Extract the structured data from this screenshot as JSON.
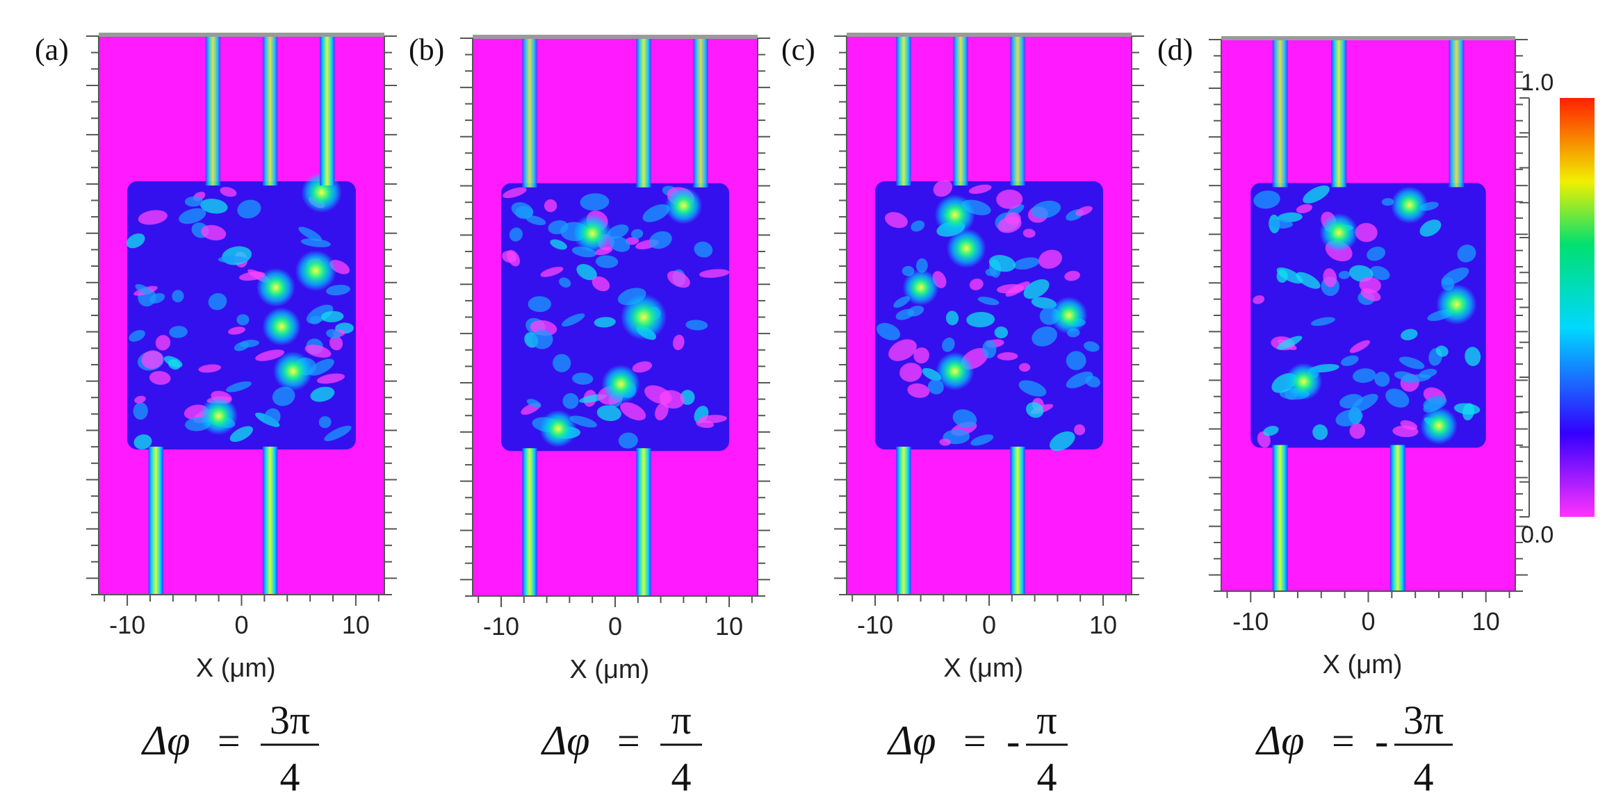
{
  "chart_data": [
    {
      "type": "heatmap",
      "panel_label": "(a)",
      "xlabel": "X (μm)",
      "x_ticks": [
        -10,
        0,
        10
      ],
      "xlim": [
        -12.5,
        12.5
      ],
      "delta_phi_numerator": "3π",
      "delta_phi_sign": "",
      "delta_phi_denominator": "4",
      "input_waveguides_x": [
        -7.5,
        2.5
      ],
      "output_waveguides_x": [
        -2.5,
        2.5,
        7.5
      ],
      "output_intensity": [
        0.55,
        0.55,
        0.75
      ],
      "bright_spots": [
        [
          7.0,
          0.28,
          0.7
        ],
        [
          6.5,
          0.42,
          0.72
        ],
        [
          4.5,
          0.6,
          0.65
        ],
        [
          3.0,
          0.45,
          0.62
        ],
        [
          -2.0,
          0.68,
          0.6
        ],
        [
          3.5,
          0.52,
          0.6
        ]
      ]
    },
    {
      "type": "heatmap",
      "panel_label": "(b)",
      "xlabel": "X (μm)",
      "x_ticks": [
        -10,
        0,
        10
      ],
      "xlim": [
        -12.5,
        12.5
      ],
      "delta_phi_numerator": "π",
      "delta_phi_sign": "",
      "delta_phi_denominator": "4",
      "input_waveguides_x": [
        -7.5,
        2.5
      ],
      "output_waveguides_x": [
        -7.5,
        2.5,
        7.5
      ],
      "output_intensity": [
        0.5,
        0.65,
        0.5
      ],
      "bright_spots": [
        [
          2.5,
          0.5,
          0.95
        ],
        [
          -2.0,
          0.35,
          0.6
        ],
        [
          0.5,
          0.62,
          0.6
        ],
        [
          -5.0,
          0.7,
          0.55
        ],
        [
          6.0,
          0.3,
          0.55
        ]
      ]
    },
    {
      "type": "heatmap",
      "panel_label": "(c)",
      "xlabel": "X (μm)",
      "x_ticks": [
        -10,
        0,
        10
      ],
      "xlim": [
        -12.5,
        12.5
      ],
      "delta_phi_numerator": "π",
      "delta_phi_sign": "-",
      "delta_phi_denominator": "4",
      "input_waveguides_x": [
        -7.5,
        2.5
      ],
      "output_waveguides_x": [
        -7.5,
        -2.5,
        2.5
      ],
      "output_intensity": [
        0.65,
        0.55,
        0.5
      ],
      "bright_spots": [
        [
          -3.0,
          0.32,
          0.7
        ],
        [
          -2.0,
          0.38,
          0.65
        ],
        [
          -3.0,
          0.6,
          0.6
        ],
        [
          7.0,
          0.5,
          0.55
        ],
        [
          -6.0,
          0.45,
          0.5
        ]
      ]
    },
    {
      "type": "heatmap",
      "panel_label": "(d)",
      "xlabel": "X (μm)",
      "x_ticks": [
        -10,
        0,
        10
      ],
      "xlim": [
        -12.5,
        12.5
      ],
      "delta_phi_numerator": "3π",
      "delta_phi_sign": "-",
      "delta_phi_denominator": "4",
      "input_waveguides_x": [
        -7.5,
        2.5
      ],
      "output_waveguides_x": [
        -7.5,
        -2.5,
        7.5
      ],
      "output_intensity": [
        0.5,
        0.65,
        0.5
      ],
      "bright_spots": [
        [
          7.5,
          0.48,
          0.7
        ],
        [
          -2.5,
          0.35,
          0.62
        ],
        [
          3.5,
          0.3,
          0.55
        ],
        [
          -5.5,
          0.62,
          0.55
        ],
        [
          6.0,
          0.7,
          0.55
        ]
      ]
    }
  ],
  "colorbar": {
    "max_label": "1.0",
    "min_label": "0.0",
    "colors": [
      "#ff33ff",
      "#3300ff",
      "#00d8ff",
      "#00e070",
      "#f0f000",
      "#ff2000"
    ]
  },
  "delta_phi_symbol": "Δφ",
  "equals_sign": "="
}
